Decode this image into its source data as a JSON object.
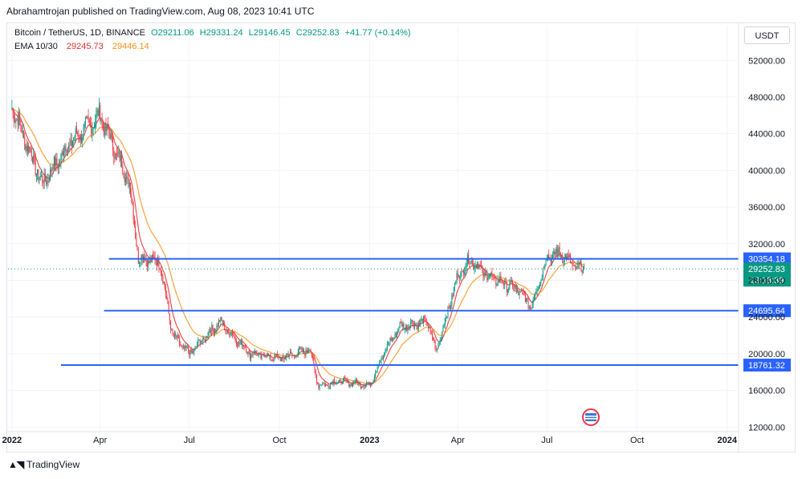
{
  "header": {
    "published": "Abrahamtrojan published on TradingView.com, Aug 08, 2023 10:41 UTC"
  },
  "legend": {
    "symbol": "Bitcoin / TetherUS, 1D, BINANCE",
    "o": "O29211.06",
    "h": "H29331.24",
    "l": "L29146.45",
    "c": "C29252.83",
    "chg": "+41.77 (+0.14%)",
    "ema_label": "EMA 10/30",
    "ema_fast": "29245.73",
    "ema_slow": "29446.14"
  },
  "currency_button": "USDT",
  "footer": {
    "brand": "TradingView"
  },
  "chart_data": {
    "type": "line",
    "x": [
      "2022-01-01",
      "2022-02-01",
      "2022-03-01",
      "2022-04-01",
      "2022-05-01",
      "2022-05-10",
      "2022-06-01",
      "2022-06-14",
      "2022-07-01",
      "2022-08-01",
      "2022-09-01",
      "2022-10-01",
      "2022-11-01",
      "2022-11-10",
      "2022-12-01",
      "2023-01-01",
      "2023-01-20",
      "2023-02-01",
      "2023-03-01",
      "2023-03-10",
      "2023-04-01",
      "2023-04-14",
      "2023-05-01",
      "2023-06-01",
      "2023-06-15",
      "2023-07-01",
      "2023-07-14",
      "2023-08-01",
      "2023-08-08"
    ],
    "series": [
      {
        "values": [
          47000,
          38500,
          43000,
          46000,
          38500,
          30500,
          30000,
          22000,
          20000,
          23500,
          20000,
          19500,
          20500,
          16500,
          17000,
          16600,
          21000,
          23000,
          23500,
          20200,
          28500,
          30300,
          28500,
          27000,
          25200,
          30500,
          31000,
          29300,
          29250
        ]
      }
    ],
    "ema_fast_color": "#e0312f",
    "ema_slow_color": "#f7931a",
    "hlines": [
      {
        "value": 30354.18,
        "label": "30354.18",
        "color": "#2962ff",
        "start": "2022-04-10"
      },
      {
        "value": 24695.64,
        "label": "24695.64",
        "color": "#2962ff",
        "start": "2022-04-05"
      },
      {
        "value": 18761.32,
        "label": "18761.32",
        "color": "#2962ff",
        "start": "2022-02-20"
      }
    ],
    "last_price": {
      "value": 29252.83,
      "label": "29252.83",
      "countdown": "13:18:39",
      "color": "#089981"
    },
    "y_ticks": [
      "52000.00",
      "48000.00",
      "44000.00",
      "40000.00",
      "36000.00",
      "32000.00",
      "28000.00",
      "24000.00",
      "20000.00",
      "16000.00",
      "12000.00"
    ],
    "ylim": [
      11500,
      53600
    ],
    "x_ticks": [
      {
        "label": "2022",
        "date": "2022-01-01",
        "bold": true
      },
      {
        "label": "Apr",
        "date": "2022-04-01"
      },
      {
        "label": "Jul",
        "date": "2022-07-01"
      },
      {
        "label": "Oct",
        "date": "2022-10-01"
      },
      {
        "label": "2023",
        "date": "2023-01-01",
        "bold": true
      },
      {
        "label": "Apr",
        "date": "2023-04-01"
      },
      {
        "label": "Jul",
        "date": "2023-07-01"
      },
      {
        "label": "Oct",
        "date": "2023-10-01"
      },
      {
        "label": "2024",
        "date": "2024-01-01",
        "bold": true
      }
    ],
    "xlim": [
      "2021-12-28",
      "2024-01-11"
    ],
    "grid": true
  }
}
